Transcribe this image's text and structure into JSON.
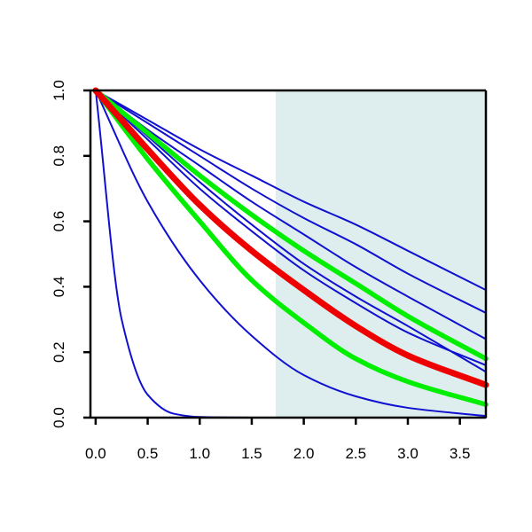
{
  "chart_data": {
    "type": "line",
    "title": "",
    "xlabel": "",
    "ylabel": "",
    "xlim": [
      -0.05,
      3.75
    ],
    "ylim": [
      0,
      1
    ],
    "x_ticks": [
      "0.0",
      "0.5",
      "1.0",
      "1.5",
      "2.0",
      "2.5",
      "3.0",
      "3.5"
    ],
    "y_ticks": [
      "0.0",
      "0.2",
      "0.4",
      "0.6",
      "0.8",
      "1.0"
    ],
    "shaded_region": {
      "x_from": 1.73,
      "x_to": 3.75,
      "color": "#deeded"
    },
    "grid": false,
    "legend": "none",
    "colors": {
      "blue": "#1010d0",
      "green": "#00ee00",
      "red": "#ee0000"
    },
    "series": [
      {
        "color": "blue",
        "values": [
          [
            0,
            1.0
          ],
          [
            0.25,
            0.3
          ],
          [
            0.5,
            0.07
          ],
          [
            0.75,
            0.012
          ],
          [
            1.0,
            0.002
          ],
          [
            1.5,
            0.0
          ],
          [
            3.75,
            0.0
          ]
        ]
      },
      {
        "color": "blue",
        "values": [
          [
            0,
            1.0
          ],
          [
            0.5,
            0.66
          ],
          [
            1.0,
            0.42
          ],
          [
            1.5,
            0.25
          ],
          [
            2.0,
            0.13
          ],
          [
            2.5,
            0.065
          ],
          [
            3.0,
            0.03
          ],
          [
            3.75,
            0.005
          ]
        ]
      },
      {
        "color": "green",
        "values": [
          [
            0,
            1.0
          ],
          [
            0.5,
            0.79
          ],
          [
            1.0,
            0.6
          ],
          [
            1.5,
            0.42
          ],
          [
            2.0,
            0.29
          ],
          [
            2.5,
            0.18
          ],
          [
            3.0,
            0.11
          ],
          [
            3.75,
            0.04
          ]
        ]
      },
      {
        "color": "red",
        "values": [
          [
            0,
            1.0
          ],
          [
            0.5,
            0.82
          ],
          [
            1.0,
            0.65
          ],
          [
            1.5,
            0.51
          ],
          [
            2.0,
            0.39
          ],
          [
            2.5,
            0.28
          ],
          [
            3.0,
            0.19
          ],
          [
            3.75,
            0.1
          ]
        ]
      },
      {
        "color": "blue",
        "values": [
          [
            0,
            1.0
          ],
          [
            0.5,
            0.85
          ],
          [
            1.0,
            0.7
          ],
          [
            1.5,
            0.57
          ],
          [
            2.0,
            0.45
          ],
          [
            2.5,
            0.35
          ],
          [
            3.0,
            0.26
          ],
          [
            3.75,
            0.16
          ]
        ]
      },
      {
        "color": "blue",
        "values": [
          [
            0,
            1.0
          ],
          [
            0.5,
            0.86
          ],
          [
            1.0,
            0.72
          ],
          [
            1.5,
            0.59
          ],
          [
            2.0,
            0.47
          ],
          [
            2.5,
            0.37
          ],
          [
            3.0,
            0.28
          ],
          [
            3.75,
            0.14
          ]
        ]
      },
      {
        "color": "green",
        "values": [
          [
            0,
            1.0
          ],
          [
            0.5,
            0.87
          ],
          [
            1.0,
            0.74
          ],
          [
            1.5,
            0.62
          ],
          [
            2.0,
            0.51
          ],
          [
            2.5,
            0.41
          ],
          [
            3.0,
            0.31
          ],
          [
            3.75,
            0.18
          ]
        ]
      },
      {
        "color": "blue",
        "values": [
          [
            0,
            1.0
          ],
          [
            0.5,
            0.88
          ],
          [
            1.0,
            0.77
          ],
          [
            1.5,
            0.66
          ],
          [
            2.0,
            0.56
          ],
          [
            2.5,
            0.46
          ],
          [
            3.0,
            0.37
          ],
          [
            3.75,
            0.24
          ]
        ]
      },
      {
        "color": "blue",
        "values": [
          [
            0,
            1.0
          ],
          [
            0.5,
            0.9
          ],
          [
            1.0,
            0.8
          ],
          [
            1.5,
            0.7
          ],
          [
            2.0,
            0.61
          ],
          [
            2.5,
            0.53
          ],
          [
            3.0,
            0.44
          ],
          [
            3.75,
            0.32
          ]
        ]
      },
      {
        "color": "blue",
        "values": [
          [
            0,
            1.0
          ],
          [
            0.5,
            0.91
          ],
          [
            1.0,
            0.82
          ],
          [
            1.5,
            0.74
          ],
          [
            2.0,
            0.66
          ],
          [
            2.5,
            0.59
          ],
          [
            3.0,
            0.51
          ],
          [
            3.75,
            0.39
          ]
        ]
      }
    ]
  }
}
